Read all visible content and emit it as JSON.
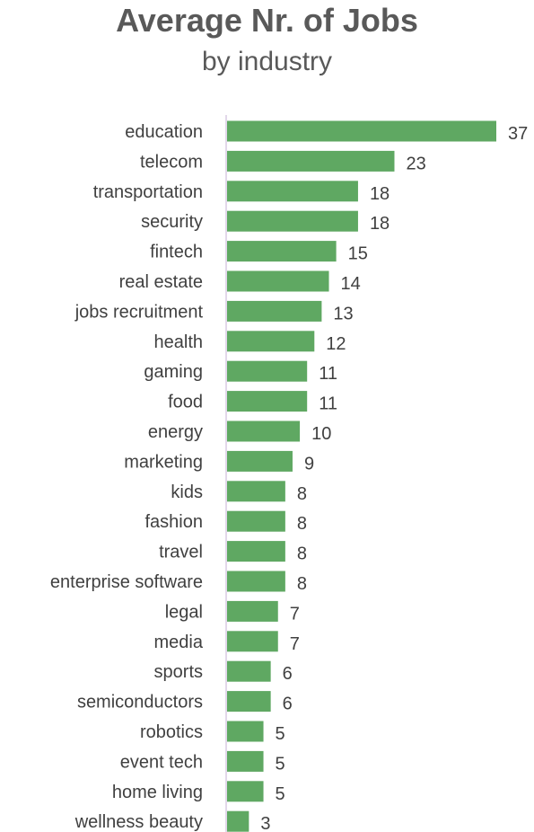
{
  "chart_data": {
    "type": "bar",
    "orientation": "horizontal",
    "title": "Average Nr. of Jobs",
    "subtitle": "by industry",
    "xlabel": "",
    "ylabel": "",
    "categories": [
      "education",
      "telecom",
      "transportation",
      "security",
      "fintech",
      "real estate",
      "jobs recruitment",
      "health",
      "gaming",
      "food",
      "energy",
      "marketing",
      "kids",
      "fashion",
      "travel",
      "enterprise software",
      "legal",
      "media",
      "sports",
      "semiconductors",
      "robotics",
      "event tech",
      "home living",
      "wellness beauty"
    ],
    "values": [
      37,
      23,
      18,
      18,
      15,
      14,
      13,
      12,
      11,
      11,
      10,
      9,
      8,
      8,
      8,
      8,
      7,
      7,
      6,
      6,
      5,
      5,
      5,
      3
    ],
    "data_labels": [
      "37",
      "23",
      "18",
      "18",
      "15",
      "14",
      "13",
      "12",
      "11",
      "11",
      "10",
      "9",
      "8",
      "8",
      "8",
      "8",
      "7",
      "7",
      "6",
      "6",
      "5",
      "5",
      "5",
      "3"
    ],
    "xlim": [
      0,
      37
    ],
    "bar_color": "#5fa862",
    "axis_color": "#d9cce3",
    "grid": false,
    "legend": "none"
  }
}
